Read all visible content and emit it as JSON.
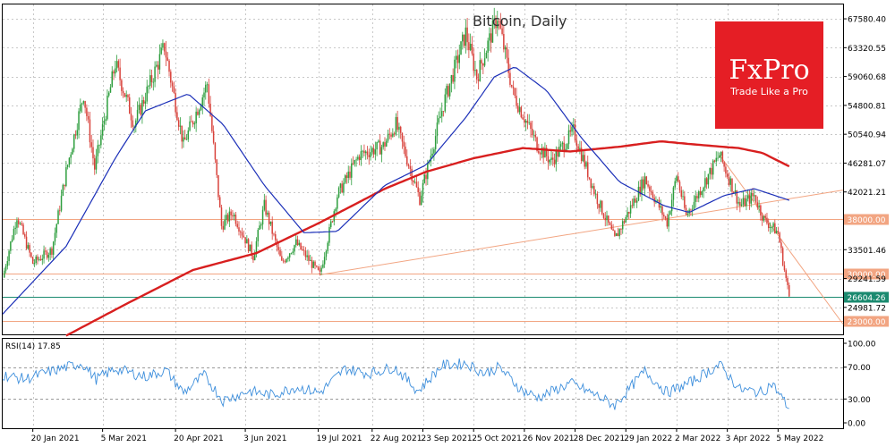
{
  "chart_data": [
    {
      "type": "candlestick",
      "title": "Bitcoin, Daily",
      "ylim": [
        21000,
        69700
      ],
      "price_ticks": [
        "67580.40",
        "63320.55",
        "59060.68",
        "54800.81",
        "50540.94",
        "46281.07",
        "42021.21",
        "33501.46",
        "29241.59",
        "24981.72"
      ],
      "price_tick_values": [
        67580.4,
        63320.55,
        59060.68,
        54800.81,
        50540.94,
        46281.07,
        42021.21,
        33501.46,
        29241.59,
        24981.72
      ],
      "horizontal_levels": [
        {
          "label": "38000.00",
          "value": 38000
        },
        {
          "label": "30000.00",
          "value": 30000
        },
        {
          "label": "23000.00",
          "value": 23000
        }
      ],
      "last_price": {
        "label": "26604.26",
        "value": 26604.26
      },
      "close_points": [
        {
          "date": "2021-01-01",
          "close": 29400
        },
        {
          "date": "2021-01-10",
          "close": 38500
        },
        {
          "date": "2021-01-20",
          "close": 31500
        },
        {
          "date": "2021-02-01",
          "close": 33500
        },
        {
          "date": "2021-02-10",
          "close": 45000
        },
        {
          "date": "2021-02-21",
          "close": 56500
        },
        {
          "date": "2021-02-28",
          "close": 45500
        },
        {
          "date": "2021-03-13",
          "close": 61000
        },
        {
          "date": "2021-03-25",
          "close": 52000
        },
        {
          "date": "2021-04-13",
          "close": 63500
        },
        {
          "date": "2021-04-25",
          "close": 49000
        },
        {
          "date": "2021-05-10",
          "close": 58000
        },
        {
          "date": "2021-05-19",
          "close": 37000
        },
        {
          "date": "2021-05-26",
          "close": 39000
        },
        {
          "date": "2021-06-08",
          "close": 32500
        },
        {
          "date": "2021-06-15",
          "close": 40000
        },
        {
          "date": "2021-06-26",
          "close": 31500
        },
        {
          "date": "2021-07-05",
          "close": 34500
        },
        {
          "date": "2021-07-20",
          "close": 29800
        },
        {
          "date": "2021-07-31",
          "close": 41500
        },
        {
          "date": "2021-08-14",
          "close": 47500
        },
        {
          "date": "2021-08-29",
          "close": 48800
        },
        {
          "date": "2021-09-06",
          "close": 52000
        },
        {
          "date": "2021-09-21",
          "close": 41000
        },
        {
          "date": "2021-10-06",
          "close": 55000
        },
        {
          "date": "2021-10-20",
          "close": 65500
        },
        {
          "date": "2021-10-27",
          "close": 59000
        },
        {
          "date": "2021-11-09",
          "close": 68000
        },
        {
          "date": "2021-11-19",
          "close": 56500
        },
        {
          "date": "2021-12-04",
          "close": 49000
        },
        {
          "date": "2021-12-13",
          "close": 46500
        },
        {
          "date": "2021-12-27",
          "close": 51000
        },
        {
          "date": "2022-01-10",
          "close": 41500
        },
        {
          "date": "2022-01-22",
          "close": 35000
        },
        {
          "date": "2022-02-10",
          "close": 44000
        },
        {
          "date": "2022-02-24",
          "close": 37500
        },
        {
          "date": "2022-03-02",
          "close": 44500
        },
        {
          "date": "2022-03-08",
          "close": 38500
        },
        {
          "date": "2022-03-29",
          "close": 47500
        },
        {
          "date": "2022-04-11",
          "close": 40000
        },
        {
          "date": "2022-04-20",
          "close": 41500
        },
        {
          "date": "2022-04-26",
          "close": 38000
        },
        {
          "date": "2022-05-05",
          "close": 36000
        },
        {
          "date": "2022-05-09",
          "close": 30500
        },
        {
          "date": "2022-05-12",
          "close": 26604
        }
      ],
      "ma_blue_points": [
        {
          "date": "2021-01-01",
          "value": 24000
        },
        {
          "date": "2021-02-10",
          "value": 34000
        },
        {
          "date": "2021-03-13",
          "value": 47000
        },
        {
          "date": "2021-04-01",
          "value": 54000
        },
        {
          "date": "2021-04-28",
          "value": 56500
        },
        {
          "date": "2021-05-20",
          "value": 52000
        },
        {
          "date": "2021-06-15",
          "value": 43000
        },
        {
          "date": "2021-07-10",
          "value": 36000
        },
        {
          "date": "2021-07-31",
          "value": 36200
        },
        {
          "date": "2021-08-30",
          "value": 43000
        },
        {
          "date": "2021-09-25",
          "value": 46000
        },
        {
          "date": "2021-10-20",
          "value": 53000
        },
        {
          "date": "2021-11-07",
          "value": 59000
        },
        {
          "date": "2021-11-20",
          "value": 60500
        },
        {
          "date": "2021-12-10",
          "value": 57000
        },
        {
          "date": "2022-01-01",
          "value": 50000
        },
        {
          "date": "2022-01-25",
          "value": 43500
        },
        {
          "date": "2022-02-22",
          "value": 40000
        },
        {
          "date": "2022-03-10",
          "value": 39000
        },
        {
          "date": "2022-04-01",
          "value": 41500
        },
        {
          "date": "2022-04-20",
          "value": 42500
        },
        {
          "date": "2022-05-12",
          "value": 40800
        }
      ],
      "ma_red_points": [
        {
          "date": "2021-02-10",
          "value": 20800
        },
        {
          "date": "2021-03-20",
          "value": 25500
        },
        {
          "date": "2021-05-01",
          "value": 30500
        },
        {
          "date": "2021-06-10",
          "value": 33000
        },
        {
          "date": "2021-07-20",
          "value": 37500
        },
        {
          "date": "2021-08-30",
          "value": 42500
        },
        {
          "date": "2021-09-25",
          "value": 45000
        },
        {
          "date": "2021-10-25",
          "value": 47000
        },
        {
          "date": "2021-11-25",
          "value": 48500
        },
        {
          "date": "2021-12-25",
          "value": 48000
        },
        {
          "date": "2022-01-25",
          "value": 48700
        },
        {
          "date": "2022-02-20",
          "value": 49500
        },
        {
          "date": "2022-03-15",
          "value": 49000
        },
        {
          "date": "2022-04-10",
          "value": 48500
        },
        {
          "date": "2022-04-25",
          "value": 47800
        },
        {
          "date": "2022-05-12",
          "value": 45800
        }
      ],
      "trendlines": [
        {
          "from": {
            "date": "2021-07-20",
            "value": 29800
          },
          "to": {
            "date": "2022-06-15",
            "value": 42300
          }
        },
        {
          "from": {
            "date": "2022-03-29",
            "value": 47500
          },
          "to": {
            "date": "2022-06-15",
            "value": 22500
          }
        }
      ],
      "rsi": {
        "label": "RSI(14) 17.85",
        "ticks": [
          "100.00",
          "70.00",
          "30.00",
          "0.00"
        ],
        "tick_values": [
          100,
          70,
          30,
          0
        ],
        "levels": [
          70,
          30
        ],
        "points": [
          {
            "date": "2021-01-01",
            "value": 60
          },
          {
            "date": "2021-01-15",
            "value": 55
          },
          {
            "date": "2021-02-01",
            "value": 65
          },
          {
            "date": "2021-02-20",
            "value": 75
          },
          {
            "date": "2021-03-01",
            "value": 55
          },
          {
            "date": "2021-03-13",
            "value": 68
          },
          {
            "date": "2021-04-01",
            "value": 58
          },
          {
            "date": "2021-04-14",
            "value": 66
          },
          {
            "date": "2021-04-25",
            "value": 38
          },
          {
            "date": "2021-05-08",
            "value": 60
          },
          {
            "date": "2021-05-20",
            "value": 28
          },
          {
            "date": "2021-06-05",
            "value": 40
          },
          {
            "date": "2021-06-20",
            "value": 35
          },
          {
            "date": "2021-07-05",
            "value": 45
          },
          {
            "date": "2021-07-20",
            "value": 38
          },
          {
            "date": "2021-08-05",
            "value": 68
          },
          {
            "date": "2021-08-20",
            "value": 62
          },
          {
            "date": "2021-09-05",
            "value": 70
          },
          {
            "date": "2021-09-20",
            "value": 40
          },
          {
            "date": "2021-10-05",
            "value": 72
          },
          {
            "date": "2021-10-20",
            "value": 75
          },
          {
            "date": "2021-11-01",
            "value": 62
          },
          {
            "date": "2021-11-10",
            "value": 70
          },
          {
            "date": "2021-11-25",
            "value": 40
          },
          {
            "date": "2021-12-05",
            "value": 32
          },
          {
            "date": "2021-12-25",
            "value": 50
          },
          {
            "date": "2022-01-10",
            "value": 35
          },
          {
            "date": "2022-01-22",
            "value": 22
          },
          {
            "date": "2022-02-10",
            "value": 65
          },
          {
            "date": "2022-02-24",
            "value": 38
          },
          {
            "date": "2022-03-10",
            "value": 50
          },
          {
            "date": "2022-03-29",
            "value": 73
          },
          {
            "date": "2022-04-11",
            "value": 42
          },
          {
            "date": "2022-04-25",
            "value": 38
          },
          {
            "date": "2022-05-01",
            "value": 50
          },
          {
            "date": "2022-05-12",
            "value": 18
          }
        ]
      },
      "x_ticks": [
        {
          "label": "20 Jan 2021",
          "date": "2021-01-20"
        },
        {
          "label": "5 Mar 2021",
          "date": "2021-03-05"
        },
        {
          "label": "20 Apr 2021",
          "date": "2021-04-20"
        },
        {
          "label": "3 Jun 2021",
          "date": "2021-06-03"
        },
        {
          "label": "19 Jul 2021",
          "date": "2021-07-19"
        },
        {
          "label": "22 Aug 2021",
          "date": "2021-08-22"
        },
        {
          "label": "23 Sep 2021",
          "date": "2021-09-23"
        },
        {
          "label": "25 Oct 2021",
          "date": "2021-10-25"
        },
        {
          "label": "26 Nov 2021",
          "date": "2021-11-26"
        },
        {
          "label": "28 Dec 2021",
          "date": "2021-12-28"
        },
        {
          "label": "29 Jan 2022",
          "date": "2022-01-29"
        },
        {
          "label": "2 Mar 2022",
          "date": "2022-03-02"
        },
        {
          "label": "3 Apr 2022",
          "date": "2022-04-03"
        },
        {
          "label": "5 May 2022",
          "date": "2022-05-05"
        }
      ],
      "xlim": [
        "2021-01-01",
        "2022-06-15"
      ],
      "grid": true
    }
  ],
  "brand": {
    "name": "FxPro",
    "tagline": "Trade Like a Pro",
    "color": "#e51e25"
  },
  "colors": {
    "up": "#2e9e3e",
    "down": "#d8413a",
    "ma_blue": "#1b2fb8",
    "ma_red": "#d81f1f",
    "level": "#f2a582",
    "last_price": "#1a8a6f",
    "rsi": "#3e8fdc"
  }
}
